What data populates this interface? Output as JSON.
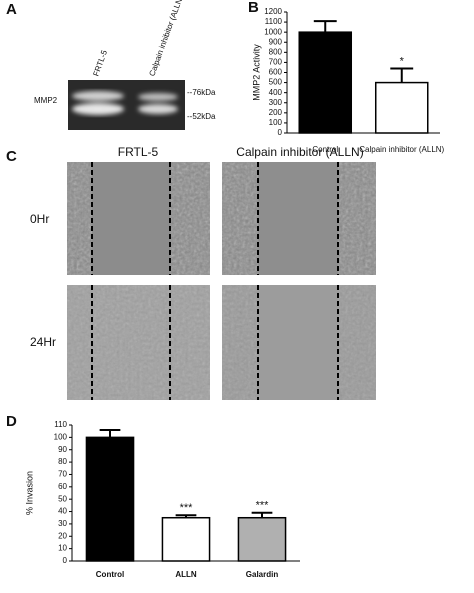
{
  "panels": {
    "A": {
      "label": "A",
      "lanes": [
        "FRTL-5",
        "Calpain inhibitor (ALLN)"
      ],
      "band_label": "MMP2",
      "markers": [
        "--76kDa",
        "--52kDa"
      ]
    },
    "C": {
      "label": "C",
      "columns": [
        "FRTL-5",
        "Calpain inhibitor (ALLN)"
      ],
      "rows": [
        "0Hr",
        "24Hr"
      ]
    }
  },
  "chart_data": [
    {
      "type": "bar",
      "label": "B",
      "ylabel": "MMP2 Activity",
      "categories": [
        "Control",
        "Calpain inhibitor (ALLN)"
      ],
      "values": [
        1000,
        500
      ],
      "errors": [
        110,
        140
      ],
      "colors": [
        "#000000",
        "#ffffff"
      ],
      "significance": [
        null,
        "*"
      ],
      "ylim": [
        0,
        1200
      ],
      "yticks": [
        0,
        100,
        200,
        300,
        400,
        500,
        600,
        700,
        800,
        900,
        1000,
        1100,
        1200
      ]
    },
    {
      "type": "bar",
      "label": "D",
      "ylabel": "% Invasion",
      "categories": [
        "Control",
        "ALLN",
        "Galardin"
      ],
      "values": [
        100,
        35,
        35
      ],
      "errors": [
        6,
        2,
        4
      ],
      "colors": [
        "#000000",
        "#ffffff",
        "#b0b0b0"
      ],
      "significance": [
        null,
        "***",
        "***"
      ],
      "ylim": [
        0,
        110
      ],
      "yticks": [
        0,
        10,
        20,
        30,
        40,
        50,
        60,
        70,
        80,
        90,
        100,
        110
      ]
    }
  ]
}
